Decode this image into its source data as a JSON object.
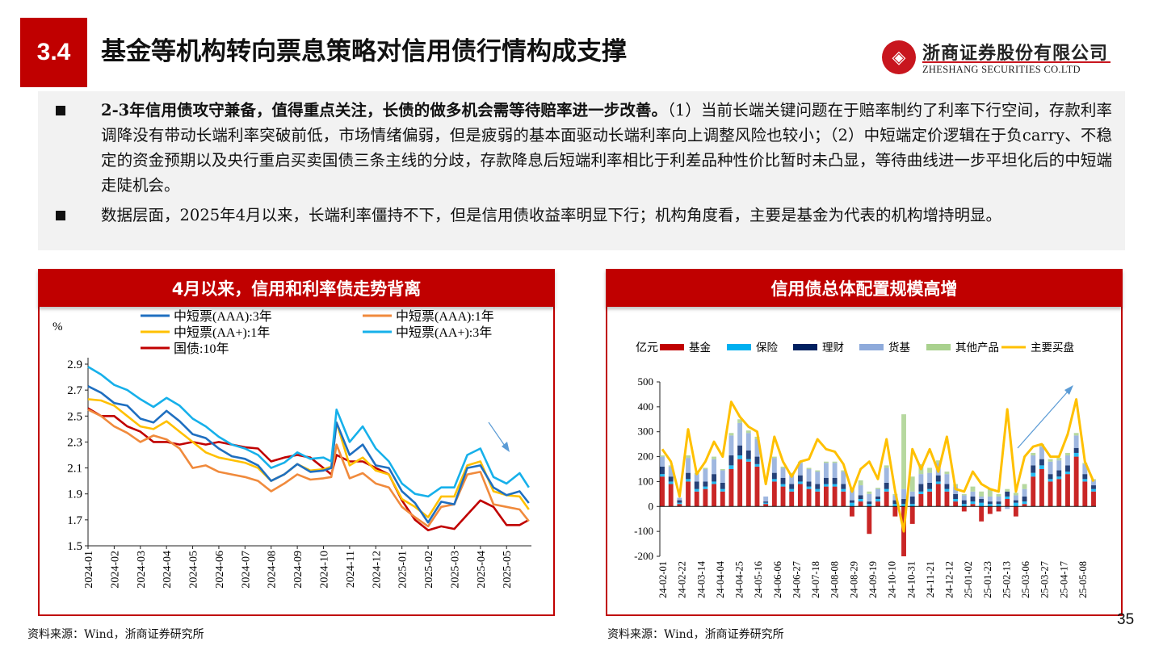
{
  "header": {
    "section": "3.4",
    "title": "基金等机构转向票息策略对信用债行情构成支撑",
    "logo_cn": "浙商证券股份有限公司",
    "logo_en": "ZHESHANG SECURITIES CO.LTD"
  },
  "body": {
    "p1_bold": "2-3年信用债攻守兼备，值得重点关注，长债的做多机会需等待赔率进一步改善。",
    "p1_rest": "（1）当前长端关键问题在于赔率制约了利率下行空间，存款利率调降没有带动长端利率突破前低，市场情绪偏弱，但是疲弱的基本面驱动长端利率向上调整风险也较小；（2）中短端定价逻辑在于负carry、不稳定的资金预期以及央行重启买卖国债三条主线的分歧，存款降息后短端利率相比于利差品种性价比暂时未凸显，等待曲线进一步平坦化后的中短端走陡机会。",
    "p2": "数据层面，2025年4月以来，长端利率僵持不下，但是信用债收益率明显下行；机构角度看，主要是基金为代表的机构增持明显。"
  },
  "left_panel": {
    "title": "4月以来，信用和利率债走势背离",
    "source": "资料来源：Wind，浙商证券研究所"
  },
  "right_panel": {
    "title": "信用债总体配置规模高增",
    "source": "资料来源：Wind，浙商证券研究所"
  },
  "page_number": "35",
  "chart_data": [
    {
      "type": "line",
      "ylabel": "%",
      "ylim": [
        1.5,
        2.9
      ],
      "yticks": [
        "2.9",
        "2.7",
        "2.5",
        "2.3",
        "2.1",
        "1.9",
        "1.7",
        "1.5"
      ],
      "xticks": [
        "2024-01",
        "2024-02",
        "2024-03",
        "2024-04",
        "2024-05",
        "2024-06",
        "2024-07",
        "2024-08",
        "2024-09",
        "2024-10",
        "2024-11",
        "2024-12",
        "2025-01",
        "2025-02",
        "2025-03",
        "2025-04",
        "2025-05"
      ],
      "x_month_index": [
        0,
        0.5,
        1,
        1.5,
        2,
        2.5,
        3,
        3.5,
        4,
        4.5,
        5,
        5.5,
        6,
        6.5,
        7,
        7.5,
        8,
        8.5,
        9,
        9.3,
        9.5,
        10,
        10.5,
        11,
        11.5,
        12,
        12.5,
        13,
        13.5,
        14,
        14.5,
        15,
        15.5,
        16,
        16.5,
        16.85
      ],
      "annotation": "down-arrow near 2025-04",
      "series": [
        {
          "name": "中短票(AAA):3年",
          "color": "#1f6fc0",
          "values": [
            2.73,
            2.68,
            2.6,
            2.58,
            2.48,
            2.45,
            2.54,
            2.46,
            2.36,
            2.33,
            2.25,
            2.19,
            2.17,
            2.12,
            2.0,
            2.05,
            2.13,
            2.07,
            2.08,
            2.1,
            2.45,
            2.2,
            2.28,
            2.12,
            2.1,
            1.92,
            1.83,
            1.68,
            1.84,
            1.82,
            2.1,
            2.12,
            1.95,
            1.89,
            1.92,
            1.83
          ]
        },
        {
          "name": "中短票(AAA):1年",
          "color": "#f08a3c",
          "values": [
            2.55,
            2.5,
            2.42,
            2.37,
            2.3,
            2.35,
            2.32,
            2.25,
            2.1,
            2.12,
            2.07,
            2.05,
            2.03,
            2.0,
            1.92,
            1.98,
            2.05,
            2.01,
            2.02,
            2.03,
            2.28,
            2.02,
            2.06,
            1.98,
            1.95,
            1.8,
            1.72,
            1.65,
            1.8,
            1.82,
            2.05,
            2.07,
            1.82,
            1.8,
            1.78,
            1.69
          ]
        },
        {
          "name": "中短票(AA+):1年",
          "color": "#ffc000",
          "values": [
            2.63,
            2.62,
            2.58,
            2.5,
            2.42,
            2.4,
            2.46,
            2.38,
            2.3,
            2.22,
            2.18,
            2.16,
            2.14,
            2.1,
            2.0,
            2.05,
            2.13,
            2.08,
            2.09,
            2.11,
            2.45,
            2.12,
            2.18,
            2.08,
            2.05,
            1.86,
            1.8,
            1.72,
            1.88,
            1.88,
            2.12,
            2.15,
            1.92,
            1.89,
            1.88,
            1.78
          ]
        },
        {
          "name": "中短票(AA+):3年",
          "color": "#16b0ea",
          "values": [
            2.88,
            2.82,
            2.74,
            2.7,
            2.63,
            2.57,
            2.64,
            2.58,
            2.48,
            2.42,
            2.34,
            2.28,
            2.25,
            2.2,
            2.1,
            2.14,
            2.22,
            2.17,
            2.18,
            2.15,
            2.55,
            2.3,
            2.42,
            2.25,
            2.15,
            1.98,
            1.9,
            1.88,
            1.95,
            1.95,
            2.2,
            2.25,
            2.03,
            1.98,
            2.06,
            1.95
          ]
        },
        {
          "name": "国债:10年",
          "color": "#c00000",
          "values": [
            2.56,
            2.5,
            2.5,
            2.42,
            2.38,
            2.3,
            2.3,
            2.28,
            2.3,
            2.28,
            2.3,
            2.28,
            2.26,
            2.25,
            2.15,
            2.18,
            2.2,
            2.18,
            2.1,
            2.05,
            2.2,
            2.15,
            2.15,
            2.1,
            2.05,
            1.85,
            1.7,
            1.62,
            1.65,
            1.63,
            1.74,
            1.85,
            1.8,
            1.66,
            1.66,
            1.7
          ]
        }
      ]
    },
    {
      "type": "bar",
      "stacked": true,
      "ylabel": "亿元",
      "ylim": [
        -200,
        500
      ],
      "yticks": [
        "500",
        "400",
        "300",
        "200",
        "100",
        "0",
        "-100",
        "-200"
      ],
      "xticks": [
        "24-02-01",
        "24-02-22",
        "24-03-14",
        "24-04-04",
        "24-04-25",
        "24-05-16",
        "24-06-06",
        "24-06-27",
        "24-07-18",
        "24-08-08",
        "24-08-29",
        "24-09-19",
        "24-10-10",
        "24-10-31",
        "24-11-21",
        "24-12-12",
        "25-01-02",
        "25-01-23",
        "25-02-13",
        "25-03-06",
        "25-03-27",
        "25-04-17",
        "25-05-08"
      ],
      "annotation": "up-arrow near 25-04",
      "series": [
        {
          "name": "基金",
          "color": "#c00000",
          "values": [
            120,
            90,
            10,
            100,
            60,
            70,
            90,
            60,
            150,
            190,
            180,
            160,
            10,
            100,
            80,
            60,
            90,
            70,
            60,
            80,
            80,
            60,
            -40,
            20,
            -110,
            20,
            60,
            -40,
            -200,
            -70,
            50,
            60,
            90,
            60,
            20,
            -20,
            10,
            -60,
            -30,
            -20,
            30,
            -40,
            10,
            120,
            150,
            100,
            110,
            130,
            200,
            100,
            60
          ]
        },
        {
          "name": "保险",
          "color": "#00b0f0",
          "values": [
            10,
            10,
            5,
            10,
            10,
            10,
            10,
            10,
            15,
            15,
            10,
            10,
            5,
            10,
            10,
            10,
            10,
            10,
            10,
            10,
            10,
            10,
            15,
            10,
            10,
            10,
            10,
            10,
            10,
            10,
            10,
            10,
            10,
            10,
            10,
            10,
            10,
            15,
            10,
            10,
            10,
            15,
            10,
            15,
            15,
            10,
            10,
            10,
            15,
            10,
            10
          ]
        },
        {
          "name": "理财",
          "color": "#002060",
          "values": [
            30,
            20,
            10,
            25,
            30,
            20,
            30,
            25,
            40,
            40,
            35,
            30,
            5,
            25,
            25,
            20,
            25,
            20,
            20,
            25,
            25,
            20,
            10,
            15,
            10,
            10,
            25,
            15,
            20,
            30,
            30,
            25,
            25,
            20,
            20,
            15,
            20,
            15,
            10,
            10,
            20,
            10,
            20,
            30,
            25,
            20,
            25,
            25,
            20,
            20,
            15
          ]
        },
        {
          "name": "货基",
          "color": "#8eaadb",
          "values": [
            40,
            40,
            10,
            60,
            30,
            50,
            60,
            50,
            80,
            90,
            70,
            70,
            20,
            60,
            40,
            40,
            50,
            50,
            50,
            60,
            60,
            50,
            40,
            40,
            30,
            30,
            60,
            20,
            40,
            20,
            40,
            40,
            50,
            40,
            30,
            20,
            20,
            10,
            20,
            20,
            -10,
            20,
            30,
            40,
            50,
            50,
            40,
            40,
            50,
            40,
            20
          ]
        },
        {
          "name": "其他产品",
          "color": "#a9d18e",
          "values": [
            5,
            5,
            0,
            10,
            5,
            5,
            10,
            5,
            10,
            15,
            10,
            10,
            0,
            5,
            5,
            5,
            5,
            5,
            5,
            5,
            5,
            5,
            10,
            20,
            10,
            5,
            10,
            5,
            300,
            60,
            40,
            20,
            10,
            10,
            10,
            5,
            20,
            20,
            30,
            10,
            10,
            10,
            20,
            10,
            10,
            10,
            10,
            10,
            10,
            5,
            5
          ]
        },
        {
          "name": "主要买盘",
          "color": "#ffc000",
          "type": "line",
          "values": [
            230,
            180,
            40,
            310,
            130,
            180,
            260,
            200,
            420,
            360,
            320,
            300,
            90,
            280,
            180,
            120,
            180,
            190,
            270,
            230,
            220,
            170,
            60,
            150,
            180,
            110,
            270,
            60,
            -100,
            230,
            150,
            230,
            140,
            280,
            70,
            60,
            140,
            90,
            70,
            60,
            390,
            60,
            200,
            240,
            250,
            200,
            200,
            290,
            430,
            180,
            100
          ]
        }
      ]
    }
  ]
}
